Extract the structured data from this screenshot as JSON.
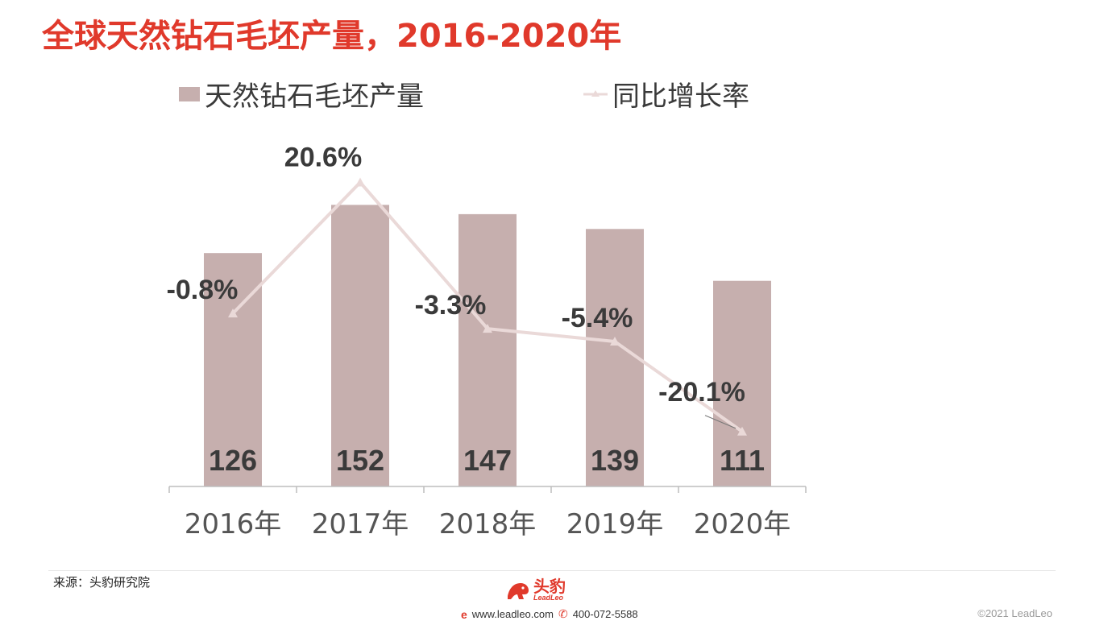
{
  "title": "全球天然钻石毛坯产量，2016-2020年",
  "legend": {
    "bar_label": "天然钻石毛坯产量",
    "line_label": "同比增长率"
  },
  "colors": {
    "title": "#e0392b",
    "bar": "#c6afae",
    "line": "#ead9d8",
    "label": "#3a3a3a",
    "axis": "#bdbdbd"
  },
  "chart_data": {
    "type": "bar",
    "categories": [
      "2016年",
      "2017年",
      "2018年",
      "2019年",
      "2020年"
    ],
    "series": [
      {
        "name": "天然钻石毛坯产量",
        "type": "bar",
        "values": [
          126,
          152,
          147,
          139,
          111
        ],
        "labels": [
          "126",
          "152",
          "147",
          "139",
          "111"
        ]
      },
      {
        "name": "同比增长率",
        "type": "line",
        "values": [
          -0.8,
          20.6,
          -3.3,
          -5.4,
          -20.1
        ],
        "labels": [
          "-0.8%",
          "20.6%",
          "-3.3%",
          "-5.4%",
          "-20.1%"
        ]
      }
    ],
    "legend": "top-left",
    "grid": false
  },
  "footer": {
    "source": "来源：头豹研究院",
    "brand_cn": "头豹",
    "brand_en": "LeadLeo",
    "website": "www.leadleo.com",
    "phone": "400-072-5588",
    "copyright": "©2021 LeadLeo"
  }
}
